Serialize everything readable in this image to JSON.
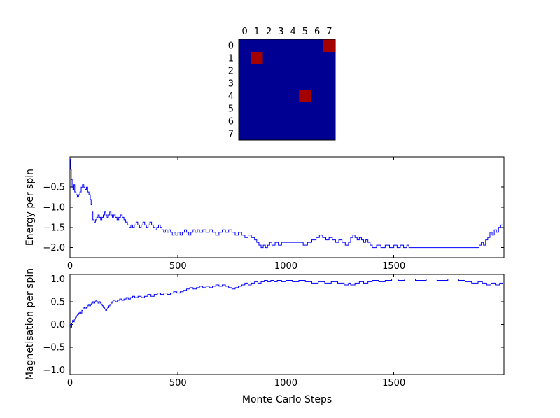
{
  "figure": {
    "background": "#ffffff",
    "axes_color": "#000000"
  },
  "chart_data": [
    {
      "type": "heatmap",
      "name": "spin-lattice",
      "cols": [
        "0",
        "1",
        "2",
        "3",
        "4",
        "5",
        "6",
        "7"
      ],
      "rows": [
        "0",
        "1",
        "2",
        "3",
        "4",
        "5",
        "6",
        "7"
      ],
      "matrix": [
        [
          -1,
          -1,
          -1,
          -1,
          -1,
          -1,
          -1,
          1
        ],
        [
          -1,
          1,
          -1,
          -1,
          -1,
          -1,
          -1,
          -1
        ],
        [
          -1,
          -1,
          -1,
          -1,
          -1,
          -1,
          -1,
          -1
        ],
        [
          -1,
          -1,
          -1,
          -1,
          -1,
          -1,
          -1,
          -1
        ],
        [
          -1,
          -1,
          -1,
          -1,
          -1,
          1,
          -1,
          -1
        ],
        [
          -1,
          -1,
          -1,
          -1,
          -1,
          -1,
          -1,
          -1
        ],
        [
          -1,
          -1,
          -1,
          -1,
          -1,
          -1,
          -1,
          -1
        ],
        [
          -1,
          -1,
          -1,
          -1,
          -1,
          -1,
          -1,
          -1
        ]
      ],
      "colors": {
        "low": "#000092",
        "high": "#a40000"
      }
    },
    {
      "type": "line",
      "name": "energy",
      "ylabel": "Energy per spin",
      "color": "#0000ff",
      "step": true,
      "xlim": [
        0,
        2010
      ],
      "ylim": [
        -2.25,
        0.25
      ],
      "grid": false,
      "xticks": [
        {
          "v": 0,
          "label": "0"
        },
        {
          "v": 500,
          "label": "500"
        },
        {
          "v": 1000,
          "label": "1000"
        },
        {
          "v": 1500,
          "label": "1500"
        }
      ],
      "yticks": [
        {
          "v": -0.5,
          "label": "−0.5"
        },
        {
          "v": -1.0,
          "label": "−1.0"
        },
        {
          "v": -1.5,
          "label": "−1.5"
        },
        {
          "v": -2.0,
          "label": "−2.0"
        }
      ],
      "points": [
        [
          0,
          0.19
        ],
        [
          3,
          -0.06
        ],
        [
          6,
          -0.31
        ],
        [
          10,
          -0.5
        ],
        [
          14,
          -0.56
        ],
        [
          18,
          -0.44
        ],
        [
          22,
          -0.62
        ],
        [
          28,
          -0.69
        ],
        [
          34,
          -0.75
        ],
        [
          40,
          -0.69
        ],
        [
          46,
          -0.62
        ],
        [
          52,
          -0.5
        ],
        [
          58,
          -0.44
        ],
        [
          64,
          -0.5
        ],
        [
          70,
          -0.56
        ],
        [
          76,
          -0.5
        ],
        [
          82,
          -0.62
        ],
        [
          88,
          -0.69
        ],
        [
          94,
          -0.81
        ],
        [
          98,
          -0.94
        ],
        [
          102,
          -1.12
        ],
        [
          106,
          -1.31
        ],
        [
          112,
          -1.37
        ],
        [
          118,
          -1.31
        ],
        [
          124,
          -1.25
        ],
        [
          130,
          -1.19
        ],
        [
          136,
          -1.25
        ],
        [
          142,
          -1.31
        ],
        [
          148,
          -1.25
        ],
        [
          154,
          -1.19
        ],
        [
          160,
          -1.12
        ],
        [
          166,
          -1.19
        ],
        [
          172,
          -1.25
        ],
        [
          178,
          -1.19
        ],
        [
          184,
          -1.12
        ],
        [
          190,
          -1.19
        ],
        [
          196,
          -1.25
        ],
        [
          202,
          -1.19
        ],
        [
          210,
          -1.25
        ],
        [
          218,
          -1.31
        ],
        [
          226,
          -1.25
        ],
        [
          234,
          -1.19
        ],
        [
          242,
          -1.25
        ],
        [
          250,
          -1.31
        ],
        [
          258,
          -1.37
        ],
        [
          266,
          -1.44
        ],
        [
          274,
          -1.5
        ],
        [
          282,
          -1.44
        ],
        [
          290,
          -1.5
        ],
        [
          298,
          -1.44
        ],
        [
          306,
          -1.37
        ],
        [
          314,
          -1.44
        ],
        [
          322,
          -1.5
        ],
        [
          330,
          -1.44
        ],
        [
          338,
          -1.37
        ],
        [
          346,
          -1.44
        ],
        [
          354,
          -1.5
        ],
        [
          362,
          -1.44
        ],
        [
          370,
          -1.37
        ],
        [
          378,
          -1.44
        ],
        [
          386,
          -1.5
        ],
        [
          394,
          -1.56
        ],
        [
          402,
          -1.5
        ],
        [
          410,
          -1.44
        ],
        [
          418,
          -1.5
        ],
        [
          426,
          -1.56
        ],
        [
          434,
          -1.62
        ],
        [
          442,
          -1.56
        ],
        [
          450,
          -1.62
        ],
        [
          458,
          -1.56
        ],
        [
          466,
          -1.62
        ],
        [
          474,
          -1.69
        ],
        [
          482,
          -1.62
        ],
        [
          490,
          -1.69
        ],
        [
          500,
          -1.62
        ],
        [
          510,
          -1.69
        ],
        [
          520,
          -1.62
        ],
        [
          530,
          -1.56
        ],
        [
          540,
          -1.62
        ],
        [
          550,
          -1.69
        ],
        [
          560,
          -1.62
        ],
        [
          570,
          -1.56
        ],
        [
          580,
          -1.62
        ],
        [
          590,
          -1.56
        ],
        [
          600,
          -1.62
        ],
        [
          615,
          -1.56
        ],
        [
          630,
          -1.62
        ],
        [
          645,
          -1.56
        ],
        [
          660,
          -1.62
        ],
        [
          675,
          -1.69
        ],
        [
          690,
          -1.62
        ],
        [
          705,
          -1.56
        ],
        [
          720,
          -1.62
        ],
        [
          735,
          -1.56
        ],
        [
          750,
          -1.62
        ],
        [
          765,
          -1.69
        ],
        [
          780,
          -1.62
        ],
        [
          795,
          -1.69
        ],
        [
          810,
          -1.75
        ],
        [
          825,
          -1.69
        ],
        [
          840,
          -1.75
        ],
        [
          855,
          -1.81
        ],
        [
          865,
          -1.87
        ],
        [
          875,
          -1.94
        ],
        [
          885,
          -2.0
        ],
        [
          895,
          -1.94
        ],
        [
          905,
          -2.0
        ],
        [
          915,
          -1.94
        ],
        [
          925,
          -1.87
        ],
        [
          935,
          -1.94
        ],
        [
          950,
          -1.87
        ],
        [
          965,
          -1.94
        ],
        [
          980,
          -1.87
        ],
        [
          1000,
          -1.87
        ],
        [
          1040,
          -1.87
        ],
        [
          1080,
          -1.94
        ],
        [
          1100,
          -1.87
        ],
        [
          1120,
          -1.81
        ],
        [
          1140,
          -1.75
        ],
        [
          1155,
          -1.69
        ],
        [
          1170,
          -1.75
        ],
        [
          1185,
          -1.81
        ],
        [
          1200,
          -1.75
        ],
        [
          1215,
          -1.81
        ],
        [
          1230,
          -1.87
        ],
        [
          1245,
          -1.81
        ],
        [
          1260,
          -1.87
        ],
        [
          1275,
          -1.94
        ],
        [
          1290,
          -1.87
        ],
        [
          1300,
          -1.75
        ],
        [
          1310,
          -1.69
        ],
        [
          1320,
          -1.75
        ],
        [
          1330,
          -1.81
        ],
        [
          1340,
          -1.75
        ],
        [
          1350,
          -1.81
        ],
        [
          1360,
          -1.87
        ],
        [
          1370,
          -1.81
        ],
        [
          1380,
          -1.87
        ],
        [
          1390,
          -1.94
        ],
        [
          1400,
          -2.0
        ],
        [
          1420,
          -1.94
        ],
        [
          1440,
          -2.0
        ],
        [
          1460,
          -1.94
        ],
        [
          1480,
          -2.0
        ],
        [
          1500,
          -1.94
        ],
        [
          1515,
          -2.0
        ],
        [
          1530,
          -1.94
        ],
        [
          1545,
          -2.0
        ],
        [
          1560,
          -1.94
        ],
        [
          1570,
          -2.0
        ],
        [
          1650,
          -2.0
        ],
        [
          1750,
          -2.0
        ],
        [
          1880,
          -2.0
        ],
        [
          1895,
          -1.94
        ],
        [
          1905,
          -1.87
        ],
        [
          1915,
          -1.94
        ],
        [
          1925,
          -1.81
        ],
        [
          1935,
          -1.75
        ],
        [
          1945,
          -1.62
        ],
        [
          1955,
          -1.69
        ],
        [
          1965,
          -1.56
        ],
        [
          1975,
          -1.62
        ],
        [
          1985,
          -1.5
        ],
        [
          1995,
          -1.44
        ],
        [
          2005,
          -1.37
        ]
      ]
    },
    {
      "type": "line",
      "name": "magnetisation",
      "ylabel": "Magnetisation per spin",
      "xlabel": "Monte Carlo Steps",
      "color": "#0000ff",
      "step": true,
      "xlim": [
        0,
        2010
      ],
      "ylim": [
        -1.1,
        1.1
      ],
      "grid": false,
      "xticks": [
        {
          "v": 0,
          "label": "0"
        },
        {
          "v": 500,
          "label": "500"
        },
        {
          "v": 1000,
          "label": "1000"
        },
        {
          "v": 1500,
          "label": "1500"
        }
      ],
      "yticks": [
        {
          "v": 1.0,
          "label": "1.0"
        },
        {
          "v": 0.5,
          "label": "0.5"
        },
        {
          "v": 0.0,
          "label": "0.0"
        },
        {
          "v": -0.5,
          "label": "−0.5"
        },
        {
          "v": -1.0,
          "label": "−1.0"
        }
      ],
      "points": [
        [
          0,
          0.0
        ],
        [
          4,
          -0.06
        ],
        [
          8,
          0.03
        ],
        [
          12,
          0.09
        ],
        [
          16,
          0.06
        ],
        [
          20,
          0.12
        ],
        [
          25,
          0.16
        ],
        [
          30,
          0.19
        ],
        [
          35,
          0.22
        ],
        [
          40,
          0.25
        ],
        [
          45,
          0.28
        ],
        [
          50,
          0.25
        ],
        [
          55,
          0.31
        ],
        [
          60,
          0.34
        ],
        [
          65,
          0.37
        ],
        [
          70,
          0.34
        ],
        [
          75,
          0.37
        ],
        [
          80,
          0.41
        ],
        [
          85,
          0.44
        ],
        [
          90,
          0.41
        ],
        [
          95,
          0.44
        ],
        [
          100,
          0.47
        ],
        [
          105,
          0.5
        ],
        [
          110,
          0.47
        ],
        [
          115,
          0.5
        ],
        [
          120,
          0.53
        ],
        [
          125,
          0.5
        ],
        [
          130,
          0.47
        ],
        [
          135,
          0.5
        ],
        [
          140,
          0.47
        ],
        [
          145,
          0.44
        ],
        [
          150,
          0.41
        ],
        [
          155,
          0.37
        ],
        [
          160,
          0.34
        ],
        [
          165,
          0.31
        ],
        [
          170,
          0.34
        ],
        [
          175,
          0.37
        ],
        [
          180,
          0.41
        ],
        [
          185,
          0.44
        ],
        [
          190,
          0.47
        ],
        [
          195,
          0.5
        ],
        [
          200,
          0.53
        ],
        [
          210,
          0.5
        ],
        [
          220,
          0.53
        ],
        [
          230,
          0.56
        ],
        [
          240,
          0.53
        ],
        [
          250,
          0.56
        ],
        [
          260,
          0.59
        ],
        [
          270,
          0.56
        ],
        [
          280,
          0.59
        ],
        [
          290,
          0.62
        ],
        [
          300,
          0.59
        ],
        [
          315,
          0.62
        ],
        [
          330,
          0.59
        ],
        [
          345,
          0.62
        ],
        [
          360,
          0.66
        ],
        [
          375,
          0.62
        ],
        [
          390,
          0.66
        ],
        [
          405,
          0.69
        ],
        [
          420,
          0.66
        ],
        [
          435,
          0.69
        ],
        [
          450,
          0.66
        ],
        [
          465,
          0.69
        ],
        [
          480,
          0.72
        ],
        [
          495,
          0.69
        ],
        [
          510,
          0.72
        ],
        [
          525,
          0.75
        ],
        [
          540,
          0.78
        ],
        [
          555,
          0.81
        ],
        [
          570,
          0.78
        ],
        [
          585,
          0.81
        ],
        [
          600,
          0.84
        ],
        [
          615,
          0.81
        ],
        [
          630,
          0.84
        ],
        [
          645,
          0.81
        ],
        [
          660,
          0.84
        ],
        [
          675,
          0.87
        ],
        [
          690,
          0.84
        ],
        [
          705,
          0.87
        ],
        [
          720,
          0.84
        ],
        [
          735,
          0.81
        ],
        [
          750,
          0.78
        ],
        [
          765,
          0.81
        ],
        [
          780,
          0.84
        ],
        [
          795,
          0.87
        ],
        [
          810,
          0.91
        ],
        [
          825,
          0.87
        ],
        [
          840,
          0.91
        ],
        [
          855,
          0.94
        ],
        [
          870,
          0.91
        ],
        [
          885,
          0.94
        ],
        [
          900,
          0.97
        ],
        [
          915,
          0.94
        ],
        [
          930,
          0.97
        ],
        [
          945,
          0.94
        ],
        [
          960,
          0.97
        ],
        [
          980,
          0.94
        ],
        [
          1000,
          0.97
        ],
        [
          1030,
          0.94
        ],
        [
          1060,
          0.97
        ],
        [
          1090,
          0.94
        ],
        [
          1120,
          0.91
        ],
        [
          1150,
          0.94
        ],
        [
          1180,
          0.91
        ],
        [
          1210,
          0.94
        ],
        [
          1240,
          0.91
        ],
        [
          1270,
          0.87
        ],
        [
          1290,
          0.91
        ],
        [
          1300,
          0.87
        ],
        [
          1320,
          0.91
        ],
        [
          1340,
          0.94
        ],
        [
          1360,
          0.91
        ],
        [
          1380,
          0.94
        ],
        [
          1400,
          0.97
        ],
        [
          1430,
          0.94
        ],
        [
          1460,
          0.97
        ],
        [
          1490,
          1.0
        ],
        [
          1520,
          0.97
        ],
        [
          1550,
          1.0
        ],
        [
          1600,
          0.97
        ],
        [
          1650,
          1.0
        ],
        [
          1700,
          0.97
        ],
        [
          1750,
          1.0
        ],
        [
          1800,
          0.97
        ],
        [
          1830,
          0.94
        ],
        [
          1860,
          0.91
        ],
        [
          1890,
          0.94
        ],
        [
          1910,
          0.91
        ],
        [
          1930,
          0.87
        ],
        [
          1950,
          0.91
        ],
        [
          1970,
          0.87
        ],
        [
          1990,
          0.91
        ],
        [
          2005,
          0.91
        ]
      ]
    }
  ]
}
